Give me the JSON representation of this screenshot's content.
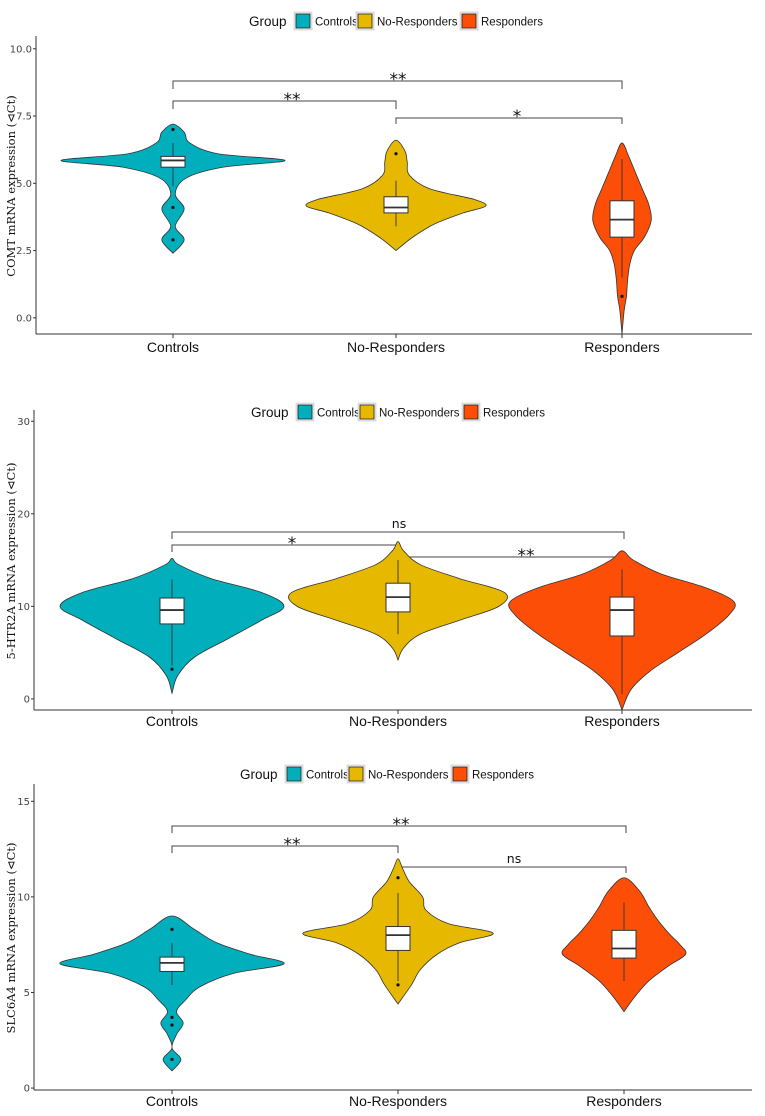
{
  "legend": {
    "title": "Group",
    "entries": [
      {
        "name": "Controls",
        "color": "#00AFBB"
      },
      {
        "name": "No-Responders",
        "color": "#E7B800"
      },
      {
        "name": "Responders",
        "color": "#FC4E07"
      }
    ]
  },
  "chart_data": [
    {
      "type": "violin",
      "ylabel": "COMT mRNA expression (⊲Ct)",
      "ylim": [
        -0.6,
        10.4
      ],
      "yticks": [
        "0.0",
        "2.5",
        "5.0",
        "7.5",
        "10.0"
      ],
      "categories": [
        "Controls",
        "No-Responders",
        "Responders"
      ],
      "groups": [
        {
          "name": "Controls",
          "q1": 5.6,
          "median": 5.85,
          "q3": 6.0,
          "lower": 4.9,
          "upper": 6.5,
          "outliers": [
            7.0,
            4.1,
            2.9
          ],
          "violin": [
            [
              2.4,
              0.0
            ],
            [
              2.9,
              0.1
            ],
            [
              3.4,
              0.02
            ],
            [
              4.05,
              0.1
            ],
            [
              4.6,
              0.02
            ],
            [
              5.2,
              0.12
            ],
            [
              5.6,
              0.45
            ],
            [
              5.85,
              1.0
            ],
            [
              6.1,
              0.4
            ],
            [
              6.5,
              0.15
            ],
            [
              6.9,
              0.1
            ],
            [
              7.2,
              0.0
            ]
          ]
        },
        {
          "name": "No-Responders",
          "q1": 3.9,
          "median": 4.1,
          "q3": 4.5,
          "lower": 3.4,
          "upper": 5.1,
          "outliers": [
            6.1
          ],
          "violin": [
            [
              2.5,
              0.0
            ],
            [
              3.0,
              0.15
            ],
            [
              3.5,
              0.35
            ],
            [
              3.9,
              0.6
            ],
            [
              4.15,
              0.8
            ],
            [
              4.4,
              0.7
            ],
            [
              4.8,
              0.3
            ],
            [
              5.3,
              0.12
            ],
            [
              5.8,
              0.1
            ],
            [
              6.2,
              0.08
            ],
            [
              6.6,
              0.0
            ]
          ]
        },
        {
          "name": "Responders",
          "q1": 3.0,
          "median": 3.65,
          "q3": 4.35,
          "lower": 1.5,
          "upper": 5.9,
          "outliers": [
            0.8
          ],
          "violin": [
            [
              -0.6,
              0.0
            ],
            [
              0.3,
              0.02
            ],
            [
              0.8,
              0.04
            ],
            [
              1.4,
              0.05
            ],
            [
              2.0,
              0.07
            ],
            [
              2.5,
              0.11
            ],
            [
              3.0,
              0.2
            ],
            [
              3.6,
              0.26
            ],
            [
              4.2,
              0.24
            ],
            [
              4.8,
              0.18
            ],
            [
              5.4,
              0.12
            ],
            [
              6.0,
              0.06
            ],
            [
              6.5,
              0.0
            ]
          ]
        }
      ],
      "comparisons": [
        {
          "from": "Controls",
          "to": "Responders",
          "label": "**"
        },
        {
          "from": "Controls",
          "to": "No-Responders",
          "label": "**"
        },
        {
          "from": "No-Responders",
          "to": "Responders",
          "label": "*"
        }
      ]
    },
    {
      "type": "violin",
      "ylabel": "5-HTR2A mRNA expression (⊲Ct)",
      "ylim": [
        -1.2,
        31.0
      ],
      "yticks": [
        "0",
        "10",
        "20",
        "30"
      ],
      "categories": [
        "Controls",
        "No-Responders",
        "Responders"
      ],
      "groups": [
        {
          "name": "Controls",
          "q1": 8.1,
          "median": 9.6,
          "q3": 10.9,
          "lower": 3.6,
          "upper": 12.9,
          "outliers": [
            3.2
          ],
          "violin": [
            [
              0.6,
              0.0
            ],
            [
              2.5,
              0.05
            ],
            [
              4.5,
              0.2
            ],
            [
              6.5,
              0.5
            ],
            [
              8.5,
              0.8
            ],
            [
              10.0,
              1.0
            ],
            [
              11.5,
              0.8
            ],
            [
              13.0,
              0.35
            ],
            [
              14.5,
              0.06
            ],
            [
              15.2,
              0.0
            ]
          ]
        },
        {
          "name": "No-Responders",
          "q1": 9.4,
          "median": 11.0,
          "q3": 12.5,
          "lower": 7.0,
          "upper": 15.0,
          "outliers": [],
          "violin": [
            [
              4.2,
              0.0
            ],
            [
              5.5,
              0.05
            ],
            [
              7.0,
              0.2
            ],
            [
              8.5,
              0.55
            ],
            [
              10.0,
              0.9
            ],
            [
              11.5,
              0.95
            ],
            [
              13.0,
              0.55
            ],
            [
              14.5,
              0.2
            ],
            [
              16.0,
              0.05
            ],
            [
              17.0,
              0.0
            ]
          ]
        },
        {
          "name": "Responders",
          "q1": 6.8,
          "median": 9.6,
          "q3": 11.0,
          "lower": 0.5,
          "upper": 14.0,
          "outliers": [],
          "violin": [
            [
              -1.2,
              0.0
            ],
            [
              1.0,
              0.08
            ],
            [
              3.0,
              0.25
            ],
            [
              5.0,
              0.5
            ],
            [
              7.0,
              0.75
            ],
            [
              9.0,
              0.95
            ],
            [
              10.5,
              1.0
            ],
            [
              12.0,
              0.75
            ],
            [
              13.5,
              0.35
            ],
            [
              15.0,
              0.1
            ],
            [
              16.0,
              0.0
            ]
          ]
        }
      ],
      "comparisons": [
        {
          "from": "Controls",
          "to": "Responders",
          "label": "ns"
        },
        {
          "from": "Controls",
          "to": "No-Responders",
          "label": "*"
        },
        {
          "from": "No-Responders",
          "to": "Responders",
          "label": "**"
        }
      ]
    },
    {
      "type": "violin",
      "ylabel": "SLC6A4 mRNA expression (⊲Ct)",
      "ylim": [
        -0.1,
        15.8
      ],
      "yticks": [
        "0",
        "5",
        "10",
        "15"
      ],
      "categories": [
        "Controls",
        "No-Responders",
        "Responders"
      ],
      "groups": [
        {
          "name": "Controls",
          "q1": 6.1,
          "median": 6.55,
          "q3": 6.85,
          "lower": 5.4,
          "upper": 7.6,
          "outliers": [
            8.3,
            3.7,
            3.3,
            1.5
          ],
          "violin": [
            [
              0.9,
              0.0
            ],
            [
              1.5,
              0.08
            ],
            [
              2.1,
              0.0
            ],
            [
              2.8,
              0.04
            ],
            [
              3.4,
              0.1
            ],
            [
              4.0,
              0.04
            ],
            [
              4.6,
              0.12
            ],
            [
              5.3,
              0.25
            ],
            [
              6.0,
              0.55
            ],
            [
              6.5,
              1.0
            ],
            [
              7.0,
              0.7
            ],
            [
              7.6,
              0.4
            ],
            [
              8.3,
              0.2
            ],
            [
              9.0,
              0.0
            ]
          ]
        },
        {
          "name": "No-Responders",
          "q1": 7.2,
          "median": 8.0,
          "q3": 8.45,
          "lower": 5.6,
          "upper": 10.2,
          "outliers": [
            11.0,
            5.4
          ],
          "violin": [
            [
              4.4,
              0.0
            ],
            [
              5.4,
              0.12
            ],
            [
              6.2,
              0.2
            ],
            [
              7.0,
              0.35
            ],
            [
              7.6,
              0.55
            ],
            [
              8.1,
              0.85
            ],
            [
              8.6,
              0.45
            ],
            [
              9.3,
              0.25
            ],
            [
              10.0,
              0.22
            ],
            [
              10.8,
              0.1
            ],
            [
              11.5,
              0.04
            ],
            [
              12.0,
              0.0
            ]
          ]
        },
        {
          "name": "Responders",
          "q1": 6.8,
          "median": 7.3,
          "q3": 8.25,
          "lower": 5.6,
          "upper": 9.7,
          "outliers": [],
          "violin": [
            [
              4.0,
              0.0
            ],
            [
              4.8,
              0.1
            ],
            [
              5.6,
              0.22
            ],
            [
              6.4,
              0.4
            ],
            [
              7.0,
              0.55
            ],
            [
              7.5,
              0.5
            ],
            [
              8.1,
              0.4
            ],
            [
              8.8,
              0.3
            ],
            [
              9.5,
              0.22
            ],
            [
              10.3,
              0.14
            ],
            [
              11.0,
              0.0
            ]
          ]
        }
      ],
      "comparisons": [
        {
          "from": "Controls",
          "to": "Responders",
          "label": "**"
        },
        {
          "from": "Controls",
          "to": "No-Responders",
          "label": "**"
        },
        {
          "from": "No-Responders",
          "to": "Responders",
          "label": "ns"
        }
      ]
    }
  ]
}
